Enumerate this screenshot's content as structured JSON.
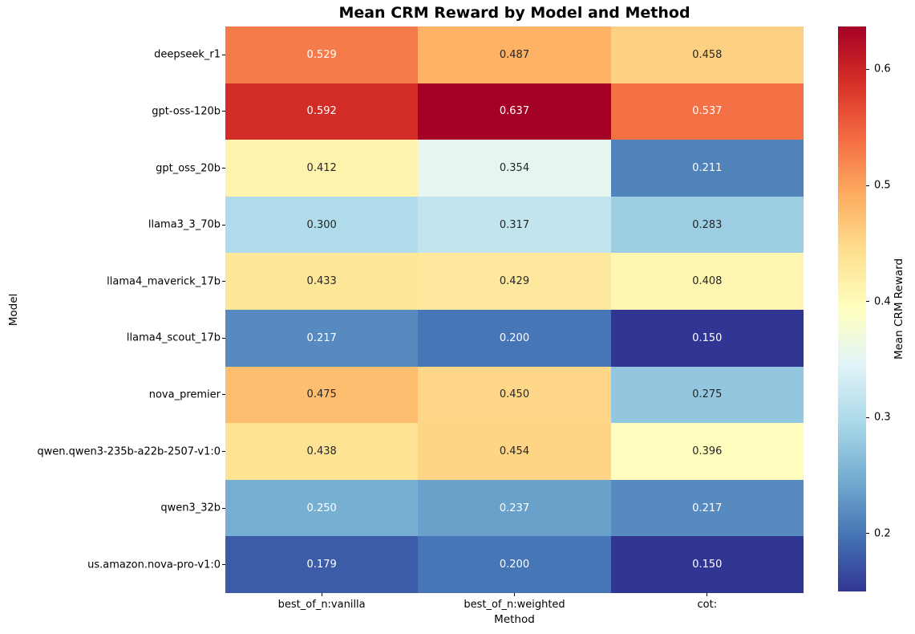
{
  "title": "Mean CRM Reward by Model and Method",
  "chart_data": {
    "type": "heatmap",
    "title": "Mean CRM Reward by Model and Method",
    "xlabel": "Method",
    "ylabel": "Model",
    "columns": [
      "best_of_n:vanilla",
      "best_of_n:weighted",
      "cot:"
    ],
    "rows": [
      "deepseek_r1",
      "gpt-oss-120b",
      "gpt_oss_20b",
      "llama3_3_70b",
      "llama4_maverick_17b",
      "llama4_scout_17b",
      "nova_premier",
      "qwen.qwen3-235b-a22b-2507-v1:0",
      "qwen3_32b",
      "us.amazon.nova-pro-v1:0"
    ],
    "values": [
      [
        0.529,
        0.487,
        0.458
      ],
      [
        0.592,
        0.637,
        0.537
      ],
      [
        0.412,
        0.354,
        0.211
      ],
      [
        0.3,
        0.317,
        0.283
      ],
      [
        0.433,
        0.429,
        0.408
      ],
      [
        0.217,
        0.2,
        0.15
      ],
      [
        0.475,
        0.45,
        0.275
      ],
      [
        0.438,
        0.454,
        0.396
      ],
      [
        0.25,
        0.237,
        0.217
      ],
      [
        0.179,
        0.2,
        0.15
      ]
    ],
    "value_format_decimals": 3,
    "colormap": "RdYlBu_r",
    "vmin": 0.15,
    "vmax": 0.637,
    "grid": false,
    "colorbar": {
      "label": "Mean CRM Reward",
      "ticks": [
        0.2,
        0.3,
        0.4,
        0.5,
        0.6
      ],
      "position": "right"
    }
  }
}
